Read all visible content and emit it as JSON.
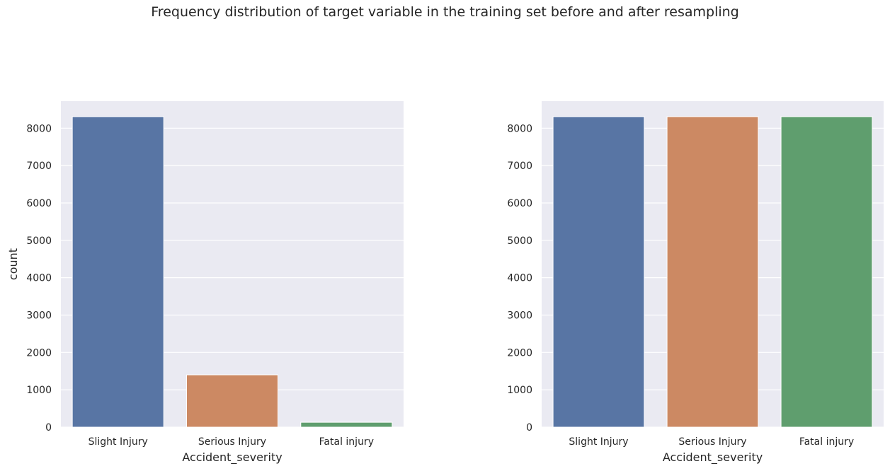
{
  "figure": {
    "suptitle": "Frequency distribution of target variable in the training set before and after resampling"
  },
  "chart_data": [
    {
      "type": "bar",
      "categories": [
        "Slight Injury",
        "Serious Injury",
        "Fatal injury"
      ],
      "values": [
        8310,
        1400,
        130
      ],
      "colors": [
        "#5875a4",
        "#cc8963",
        "#5f9e6e"
      ],
      "xlabel": "Accident_severity",
      "ylabel": "count",
      "ylim": [
        0,
        8725
      ],
      "yticks": [
        0,
        1000,
        2000,
        3000,
        4000,
        5000,
        6000,
        7000,
        8000
      ],
      "grid": true,
      "background": "#eaeaf2"
    },
    {
      "type": "bar",
      "categories": [
        "Slight Injury",
        "Serious Injury",
        "Fatal injury"
      ],
      "values": [
        8310,
        8310,
        8310
      ],
      "colors": [
        "#5875a4",
        "#cc8963",
        "#5f9e6e"
      ],
      "xlabel": "Accident_severity",
      "ylabel": "",
      "ylim": [
        0,
        8725
      ],
      "yticks": [
        0,
        1000,
        2000,
        3000,
        4000,
        5000,
        6000,
        7000,
        8000
      ],
      "grid": true,
      "background": "#eaeaf2"
    }
  ]
}
